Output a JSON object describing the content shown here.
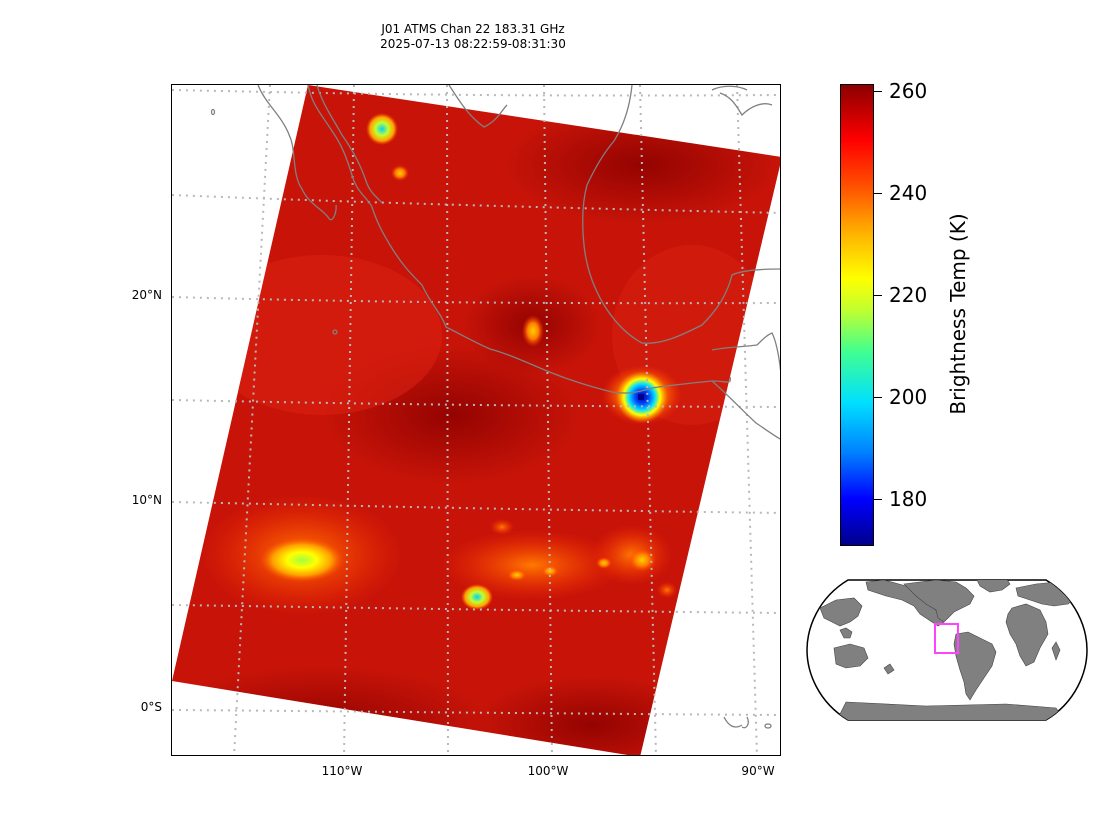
{
  "title": {
    "line1": "J01 ATMS Chan 22 183.31 GHz",
    "line2": "2025-07-13 08:22:59-08:31:30"
  },
  "map": {
    "lat_ticks": [
      "20°N",
      "10°N",
      "0°S"
    ],
    "lon_ticks": [
      "110°W",
      "100°W",
      "90°W"
    ],
    "extent": {
      "lon": [
        -118.5,
        -89
      ],
      "lat": [
        -2.5,
        30
      ]
    },
    "swath_colors": {
      "background": "#c81408",
      "warm": "#a40606",
      "cool_ring": "#ff8a00"
    },
    "coastline_color": "#808080",
    "gridline_style": "dotted gray",
    "hotspots": [
      {
        "lon": -95.6,
        "lat": 14.8,
        "tb": 178
      },
      {
        "lon": -112.0,
        "lat": 7.2,
        "tb": 226
      },
      {
        "lon": -103.4,
        "lat": 5.3,
        "tb": 205
      },
      {
        "lon": -108.1,
        "lat": 28.3,
        "tb": 205
      },
      {
        "lon": -100.6,
        "lat": 18.4,
        "tb": 234
      }
    ]
  },
  "colorbar": {
    "label": "Brightness Temp (K)",
    "ticks": [
      "260",
      "240",
      "220",
      "200",
      "180"
    ],
    "cmap": "jet",
    "range": [
      170,
      261
    ]
  },
  "inset": {
    "projection": "robinson",
    "land_color": "#808080",
    "box_color": "#ff44ff"
  }
}
